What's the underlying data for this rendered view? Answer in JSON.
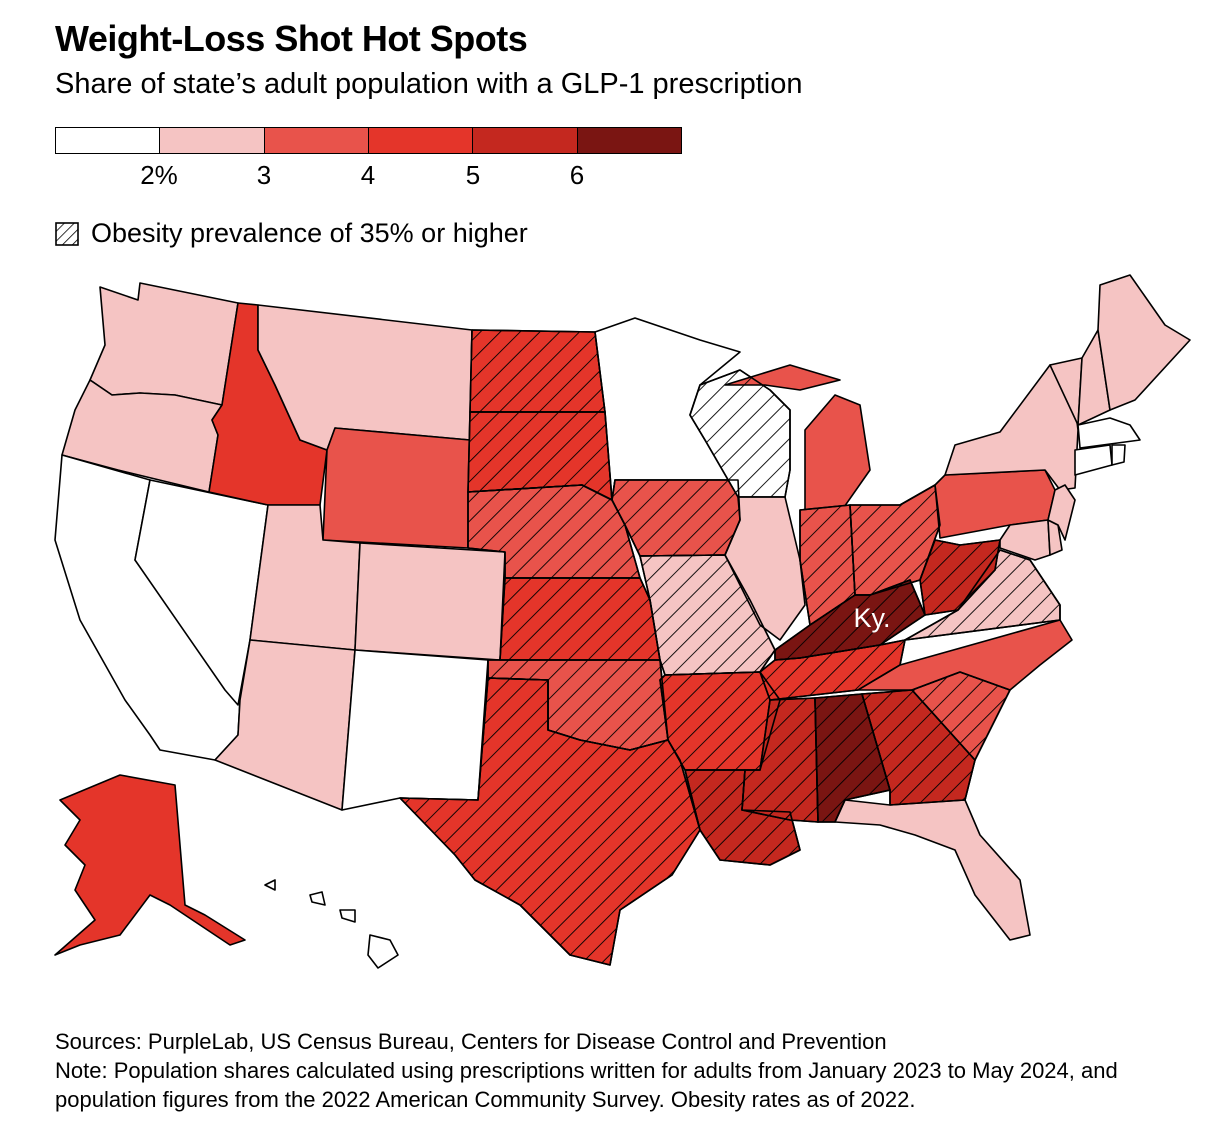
{
  "title": "Weight-Loss Shot Hot Spots",
  "subtitle": "Share of state’s adult population with a GLP-1 prescription",
  "legend": {
    "colors": [
      "#ffffff",
      "#f5c4c3",
      "#e8534b",
      "#e4352a",
      "#c4281f",
      "#7a1512"
    ],
    "ticks": [
      "2%",
      "3",
      "4",
      "5",
      "6"
    ],
    "hatch_label": "Obesity prevalence of 35% or higher"
  },
  "map": {
    "callout_label": "Ky.",
    "states": [
      {
        "name": "Washington",
        "cls": 1,
        "hatch": false
      },
      {
        "name": "Oregon",
        "cls": 1,
        "hatch": false
      },
      {
        "name": "California",
        "cls": 0,
        "hatch": false
      },
      {
        "name": "Nevada",
        "cls": 0,
        "hatch": false
      },
      {
        "name": "Idaho",
        "cls": 3,
        "hatch": false
      },
      {
        "name": "Montana",
        "cls": 1,
        "hatch": false
      },
      {
        "name": "Wyoming",
        "cls": 2,
        "hatch": false
      },
      {
        "name": "Utah",
        "cls": 1,
        "hatch": false
      },
      {
        "name": "Colorado",
        "cls": 1,
        "hatch": false
      },
      {
        "name": "Arizona",
        "cls": 1,
        "hatch": false
      },
      {
        "name": "New Mexico",
        "cls": 0,
        "hatch": false
      },
      {
        "name": "North Dakota",
        "cls": 3,
        "hatch": true
      },
      {
        "name": "South Dakota",
        "cls": 3,
        "hatch": true
      },
      {
        "name": "Nebraska",
        "cls": 2,
        "hatch": true
      },
      {
        "name": "Kansas",
        "cls": 3,
        "hatch": true
      },
      {
        "name": "Oklahoma",
        "cls": 2,
        "hatch": true
      },
      {
        "name": "Texas",
        "cls": 3,
        "hatch": true
      },
      {
        "name": "Minnesota",
        "cls": 0,
        "hatch": false
      },
      {
        "name": "Iowa",
        "cls": 2,
        "hatch": true
      },
      {
        "name": "Missouri",
        "cls": 1,
        "hatch": true
      },
      {
        "name": "Arkansas",
        "cls": 3,
        "hatch": true
      },
      {
        "name": "Louisiana",
        "cls": 4,
        "hatch": true
      },
      {
        "name": "Wisconsin",
        "cls": 0,
        "hatch": true
      },
      {
        "name": "Illinois",
        "cls": 1,
        "hatch": false
      },
      {
        "name": "Michigan",
        "cls": 2,
        "hatch": false
      },
      {
        "name": "Indiana",
        "cls": 2,
        "hatch": true
      },
      {
        "name": "Ohio",
        "cls": 2,
        "hatch": true
      },
      {
        "name": "Kentucky",
        "cls": 5,
        "hatch": true
      },
      {
        "name": "Tennessee",
        "cls": 3,
        "hatch": true
      },
      {
        "name": "Mississippi",
        "cls": 4,
        "hatch": true
      },
      {
        "name": "Alabama",
        "cls": 5,
        "hatch": true
      },
      {
        "name": "Georgia",
        "cls": 4,
        "hatch": true
      },
      {
        "name": "Florida",
        "cls": 1,
        "hatch": false
      },
      {
        "name": "South Carolina",
        "cls": 2,
        "hatch": true
      },
      {
        "name": "North Carolina",
        "cls": 2,
        "hatch": false
      },
      {
        "name": "Virginia",
        "cls": 1,
        "hatch": true
      },
      {
        "name": "West Virginia",
        "cls": 4,
        "hatch": true
      },
      {
        "name": "Pennsylvania",
        "cls": 2,
        "hatch": false
      },
      {
        "name": "New York",
        "cls": 1,
        "hatch": false
      },
      {
        "name": "Maryland",
        "cls": 1,
        "hatch": false
      },
      {
        "name": "Delaware",
        "cls": 1,
        "hatch": false
      },
      {
        "name": "New Jersey",
        "cls": 1,
        "hatch": false
      },
      {
        "name": "Vermont",
        "cls": 1,
        "hatch": false
      },
      {
        "name": "New Hampshire",
        "cls": 1,
        "hatch": false
      },
      {
        "name": "Maine",
        "cls": 1,
        "hatch": false
      },
      {
        "name": "Massachusetts",
        "cls": 0,
        "hatch": false
      },
      {
        "name": "Connecticut",
        "cls": 0,
        "hatch": false
      },
      {
        "name": "Rhode Island",
        "cls": 0,
        "hatch": false
      },
      {
        "name": "Alaska",
        "cls": 3,
        "hatch": false
      },
      {
        "name": "Hawaii",
        "cls": 0,
        "hatch": false
      }
    ]
  },
  "notes": {
    "sources": "Sources: PurpleLab, US Census Bureau, Centers for Disease Control and Prevention",
    "note": "Note: Population shares calculated using prescriptions written for adults from January 2023 to May 2024, and population figures from the 2022 American Community Survey. Obesity rates as of 2022."
  }
}
